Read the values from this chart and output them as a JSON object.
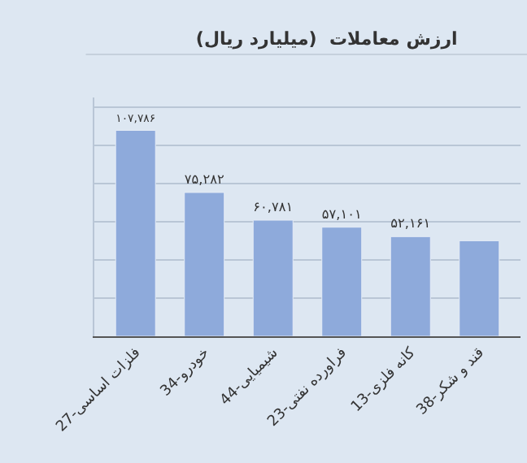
{
  "chart_data": {
    "type": "bar",
    "title": "ارزش معاملات  (میلیارد ریال)",
    "categories": [
      "27-فلزات اساسی",
      "34-خودرو",
      "44-شیمیایی",
      "23-فراورده نفتی",
      "13-کانه فلزی",
      "38-قند و شکر"
    ],
    "values": [
      107786,
      75282,
      60781,
      57101,
      52161,
      50000
    ],
    "value_labels": [
      "۱۰۷,۷۸۶",
      "۷۵,۲۸۲",
      "۶۰,۷۸۱",
      "۵۷,۱۰۱",
      "۵۲,۱۶۱",
      null
    ],
    "color": "#8eaadb",
    "ylim": [
      0,
      125000
    ],
    "yticks": [
      {
        "value": 0,
        "label": null
      },
      {
        "value": 20000,
        "label": null
      },
      {
        "value": 40000,
        "label": null
      },
      {
        "value": 60000,
        "label": null
      },
      {
        "value": 80000,
        "label": null
      },
      {
        "value": 100000,
        "label": null
      },
      {
        "value": 120000,
        "label": null
      }
    ],
    "tick_labels": "x",
    "grid": "y",
    "legend": false
  }
}
